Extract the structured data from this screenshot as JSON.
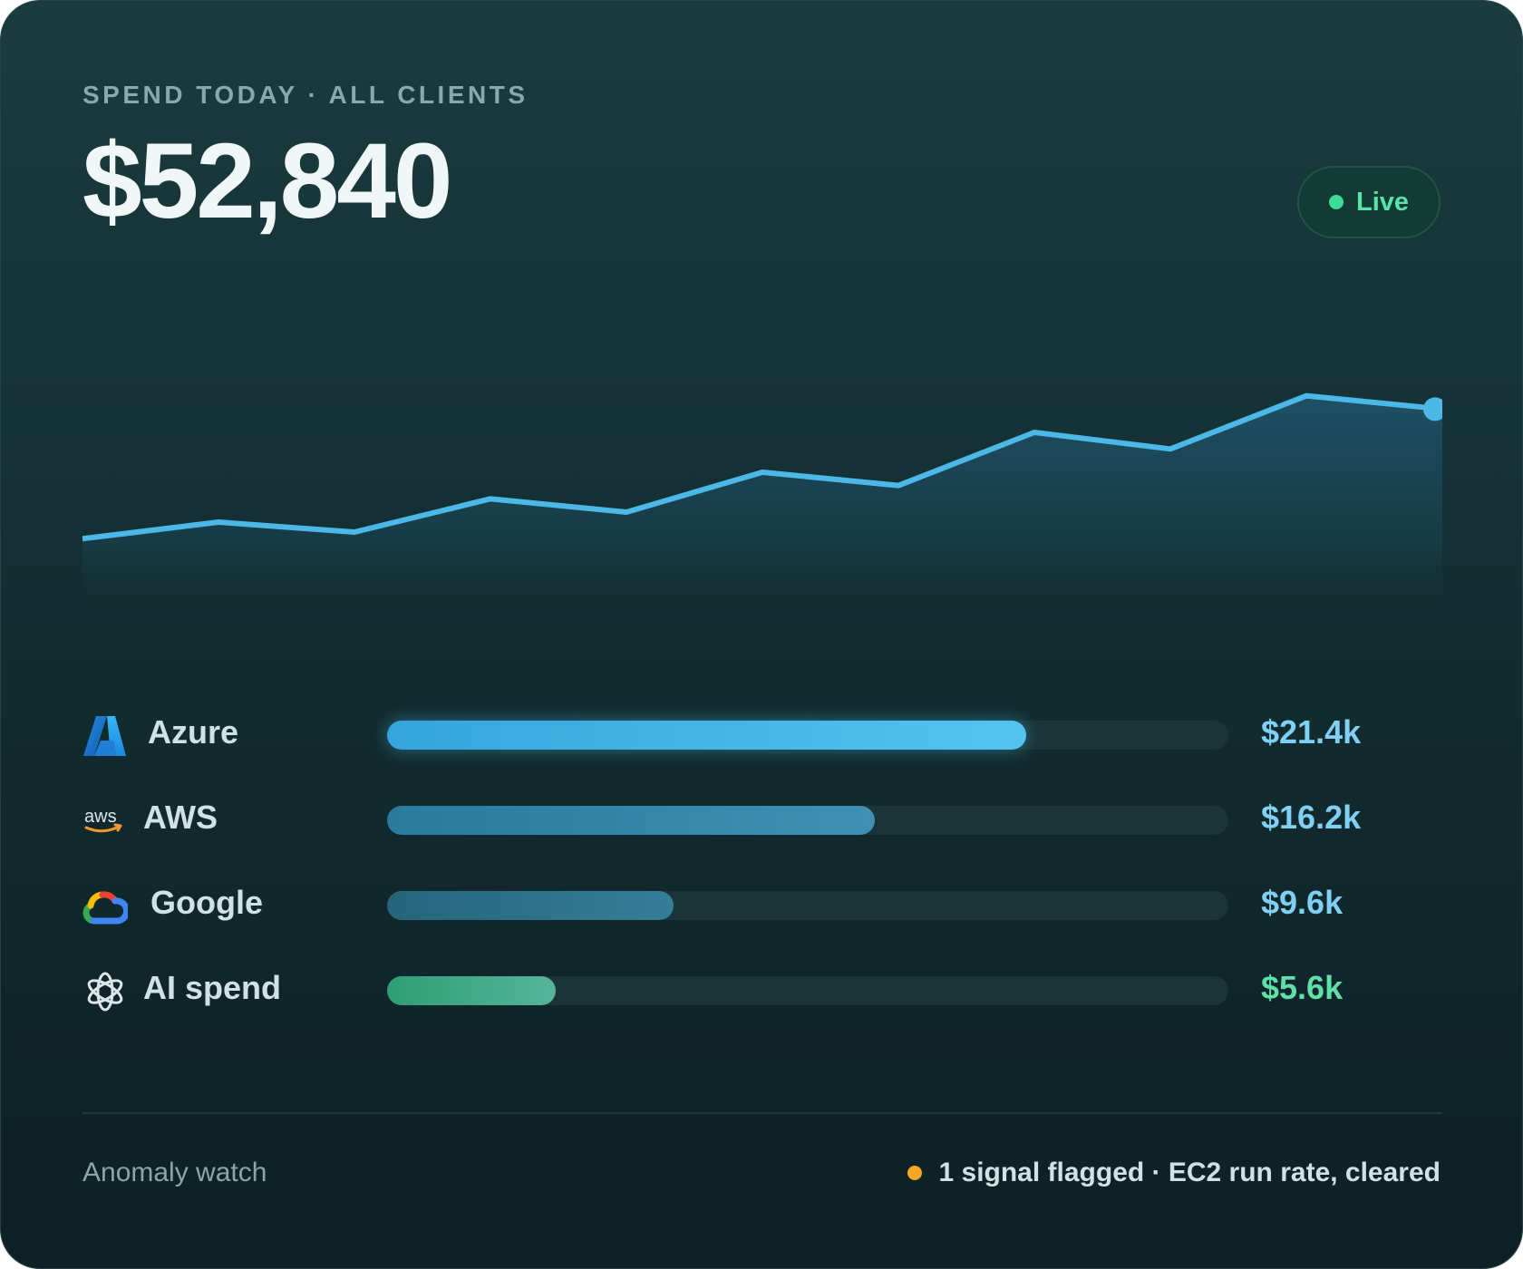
{
  "header": {
    "eyebrow": "SPEND TODAY · ALL CLIENTS",
    "total": "$52,840",
    "live_label": "Live"
  },
  "colors": {
    "line": "#4bb8e8",
    "area_top": "#1f5268",
    "live": "#3ddc97",
    "warning": "#f5a623",
    "azure_bar": "#49b8ea",
    "aws_bar": "#3588aa",
    "google_bar": "#2e6f86",
    "ai_bar": "#3aa882"
  },
  "chart_data": {
    "type": "area",
    "series": [
      {
        "values": [
          10,
          15,
          12,
          22,
          18,
          30,
          26,
          42,
          37,
          53,
          49
        ]
      }
    ],
    "ylim": [
      0,
      60
    ],
    "grid": false
  },
  "providers": [
    {
      "icon": "azure-icon",
      "name": "Azure",
      "amount": "$21.4k",
      "share": 0.76,
      "amount_color": "#7fd0f2"
    },
    {
      "icon": "aws-icon",
      "name": "AWS",
      "amount": "$16.2k",
      "share": 0.58,
      "amount_color": "#7fd0f2"
    },
    {
      "icon": "google-cloud-icon",
      "name": "Google",
      "amount": "$9.6k",
      "share": 0.34,
      "amount_color": "#7fd0f2"
    },
    {
      "icon": "openai-icon",
      "name": "AI spend",
      "amount": "$5.6k",
      "share": 0.2,
      "amount_color": "#5fe0a8"
    }
  ],
  "footer": {
    "label": "Anomaly watch",
    "status": "1 signal flagged · EC2 run rate, cleared"
  }
}
